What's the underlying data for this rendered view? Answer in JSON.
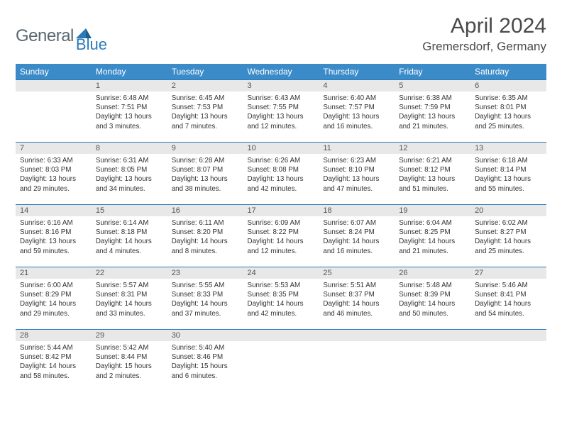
{
  "logo": {
    "gray": "General",
    "blue": "Blue"
  },
  "title": "April 2024",
  "location": "Gremersdorf, Germany",
  "colors": {
    "header_bg": "#3b8bc9",
    "daynum_bg": "#e8e8e8",
    "border_top": "#2a7ab9",
    "logo_gray": "#5b6770",
    "logo_blue": "#2a7ab9"
  },
  "weekdays": [
    "Sunday",
    "Monday",
    "Tuesday",
    "Wednesday",
    "Thursday",
    "Friday",
    "Saturday"
  ],
  "weeks": [
    [
      null,
      {
        "n": "1",
        "sr": "Sunrise: 6:48 AM",
        "ss": "Sunset: 7:51 PM",
        "d1": "Daylight: 13 hours",
        "d2": "and 3 minutes."
      },
      {
        "n": "2",
        "sr": "Sunrise: 6:45 AM",
        "ss": "Sunset: 7:53 PM",
        "d1": "Daylight: 13 hours",
        "d2": "and 7 minutes."
      },
      {
        "n": "3",
        "sr": "Sunrise: 6:43 AM",
        "ss": "Sunset: 7:55 PM",
        "d1": "Daylight: 13 hours",
        "d2": "and 12 minutes."
      },
      {
        "n": "4",
        "sr": "Sunrise: 6:40 AM",
        "ss": "Sunset: 7:57 PM",
        "d1": "Daylight: 13 hours",
        "d2": "and 16 minutes."
      },
      {
        "n": "5",
        "sr": "Sunrise: 6:38 AM",
        "ss": "Sunset: 7:59 PM",
        "d1": "Daylight: 13 hours",
        "d2": "and 21 minutes."
      },
      {
        "n": "6",
        "sr": "Sunrise: 6:35 AM",
        "ss": "Sunset: 8:01 PM",
        "d1": "Daylight: 13 hours",
        "d2": "and 25 minutes."
      }
    ],
    [
      {
        "n": "7",
        "sr": "Sunrise: 6:33 AM",
        "ss": "Sunset: 8:03 PM",
        "d1": "Daylight: 13 hours",
        "d2": "and 29 minutes."
      },
      {
        "n": "8",
        "sr": "Sunrise: 6:31 AM",
        "ss": "Sunset: 8:05 PM",
        "d1": "Daylight: 13 hours",
        "d2": "and 34 minutes."
      },
      {
        "n": "9",
        "sr": "Sunrise: 6:28 AM",
        "ss": "Sunset: 8:07 PM",
        "d1": "Daylight: 13 hours",
        "d2": "and 38 minutes."
      },
      {
        "n": "10",
        "sr": "Sunrise: 6:26 AM",
        "ss": "Sunset: 8:08 PM",
        "d1": "Daylight: 13 hours",
        "d2": "and 42 minutes."
      },
      {
        "n": "11",
        "sr": "Sunrise: 6:23 AM",
        "ss": "Sunset: 8:10 PM",
        "d1": "Daylight: 13 hours",
        "d2": "and 47 minutes."
      },
      {
        "n": "12",
        "sr": "Sunrise: 6:21 AM",
        "ss": "Sunset: 8:12 PM",
        "d1": "Daylight: 13 hours",
        "d2": "and 51 minutes."
      },
      {
        "n": "13",
        "sr": "Sunrise: 6:18 AM",
        "ss": "Sunset: 8:14 PM",
        "d1": "Daylight: 13 hours",
        "d2": "and 55 minutes."
      }
    ],
    [
      {
        "n": "14",
        "sr": "Sunrise: 6:16 AM",
        "ss": "Sunset: 8:16 PM",
        "d1": "Daylight: 13 hours",
        "d2": "and 59 minutes."
      },
      {
        "n": "15",
        "sr": "Sunrise: 6:14 AM",
        "ss": "Sunset: 8:18 PM",
        "d1": "Daylight: 14 hours",
        "d2": "and 4 minutes."
      },
      {
        "n": "16",
        "sr": "Sunrise: 6:11 AM",
        "ss": "Sunset: 8:20 PM",
        "d1": "Daylight: 14 hours",
        "d2": "and 8 minutes."
      },
      {
        "n": "17",
        "sr": "Sunrise: 6:09 AM",
        "ss": "Sunset: 8:22 PM",
        "d1": "Daylight: 14 hours",
        "d2": "and 12 minutes."
      },
      {
        "n": "18",
        "sr": "Sunrise: 6:07 AM",
        "ss": "Sunset: 8:24 PM",
        "d1": "Daylight: 14 hours",
        "d2": "and 16 minutes."
      },
      {
        "n": "19",
        "sr": "Sunrise: 6:04 AM",
        "ss": "Sunset: 8:25 PM",
        "d1": "Daylight: 14 hours",
        "d2": "and 21 minutes."
      },
      {
        "n": "20",
        "sr": "Sunrise: 6:02 AM",
        "ss": "Sunset: 8:27 PM",
        "d1": "Daylight: 14 hours",
        "d2": "and 25 minutes."
      }
    ],
    [
      {
        "n": "21",
        "sr": "Sunrise: 6:00 AM",
        "ss": "Sunset: 8:29 PM",
        "d1": "Daylight: 14 hours",
        "d2": "and 29 minutes."
      },
      {
        "n": "22",
        "sr": "Sunrise: 5:57 AM",
        "ss": "Sunset: 8:31 PM",
        "d1": "Daylight: 14 hours",
        "d2": "and 33 minutes."
      },
      {
        "n": "23",
        "sr": "Sunrise: 5:55 AM",
        "ss": "Sunset: 8:33 PM",
        "d1": "Daylight: 14 hours",
        "d2": "and 37 minutes."
      },
      {
        "n": "24",
        "sr": "Sunrise: 5:53 AM",
        "ss": "Sunset: 8:35 PM",
        "d1": "Daylight: 14 hours",
        "d2": "and 42 minutes."
      },
      {
        "n": "25",
        "sr": "Sunrise: 5:51 AM",
        "ss": "Sunset: 8:37 PM",
        "d1": "Daylight: 14 hours",
        "d2": "and 46 minutes."
      },
      {
        "n": "26",
        "sr": "Sunrise: 5:48 AM",
        "ss": "Sunset: 8:39 PM",
        "d1": "Daylight: 14 hours",
        "d2": "and 50 minutes."
      },
      {
        "n": "27",
        "sr": "Sunrise: 5:46 AM",
        "ss": "Sunset: 8:41 PM",
        "d1": "Daylight: 14 hours",
        "d2": "and 54 minutes."
      }
    ],
    [
      {
        "n": "28",
        "sr": "Sunrise: 5:44 AM",
        "ss": "Sunset: 8:42 PM",
        "d1": "Daylight: 14 hours",
        "d2": "and 58 minutes."
      },
      {
        "n": "29",
        "sr": "Sunrise: 5:42 AM",
        "ss": "Sunset: 8:44 PM",
        "d1": "Daylight: 15 hours",
        "d2": "and 2 minutes."
      },
      {
        "n": "30",
        "sr": "Sunrise: 5:40 AM",
        "ss": "Sunset: 8:46 PM",
        "d1": "Daylight: 15 hours",
        "d2": "and 6 minutes."
      },
      null,
      null,
      null,
      null
    ]
  ]
}
